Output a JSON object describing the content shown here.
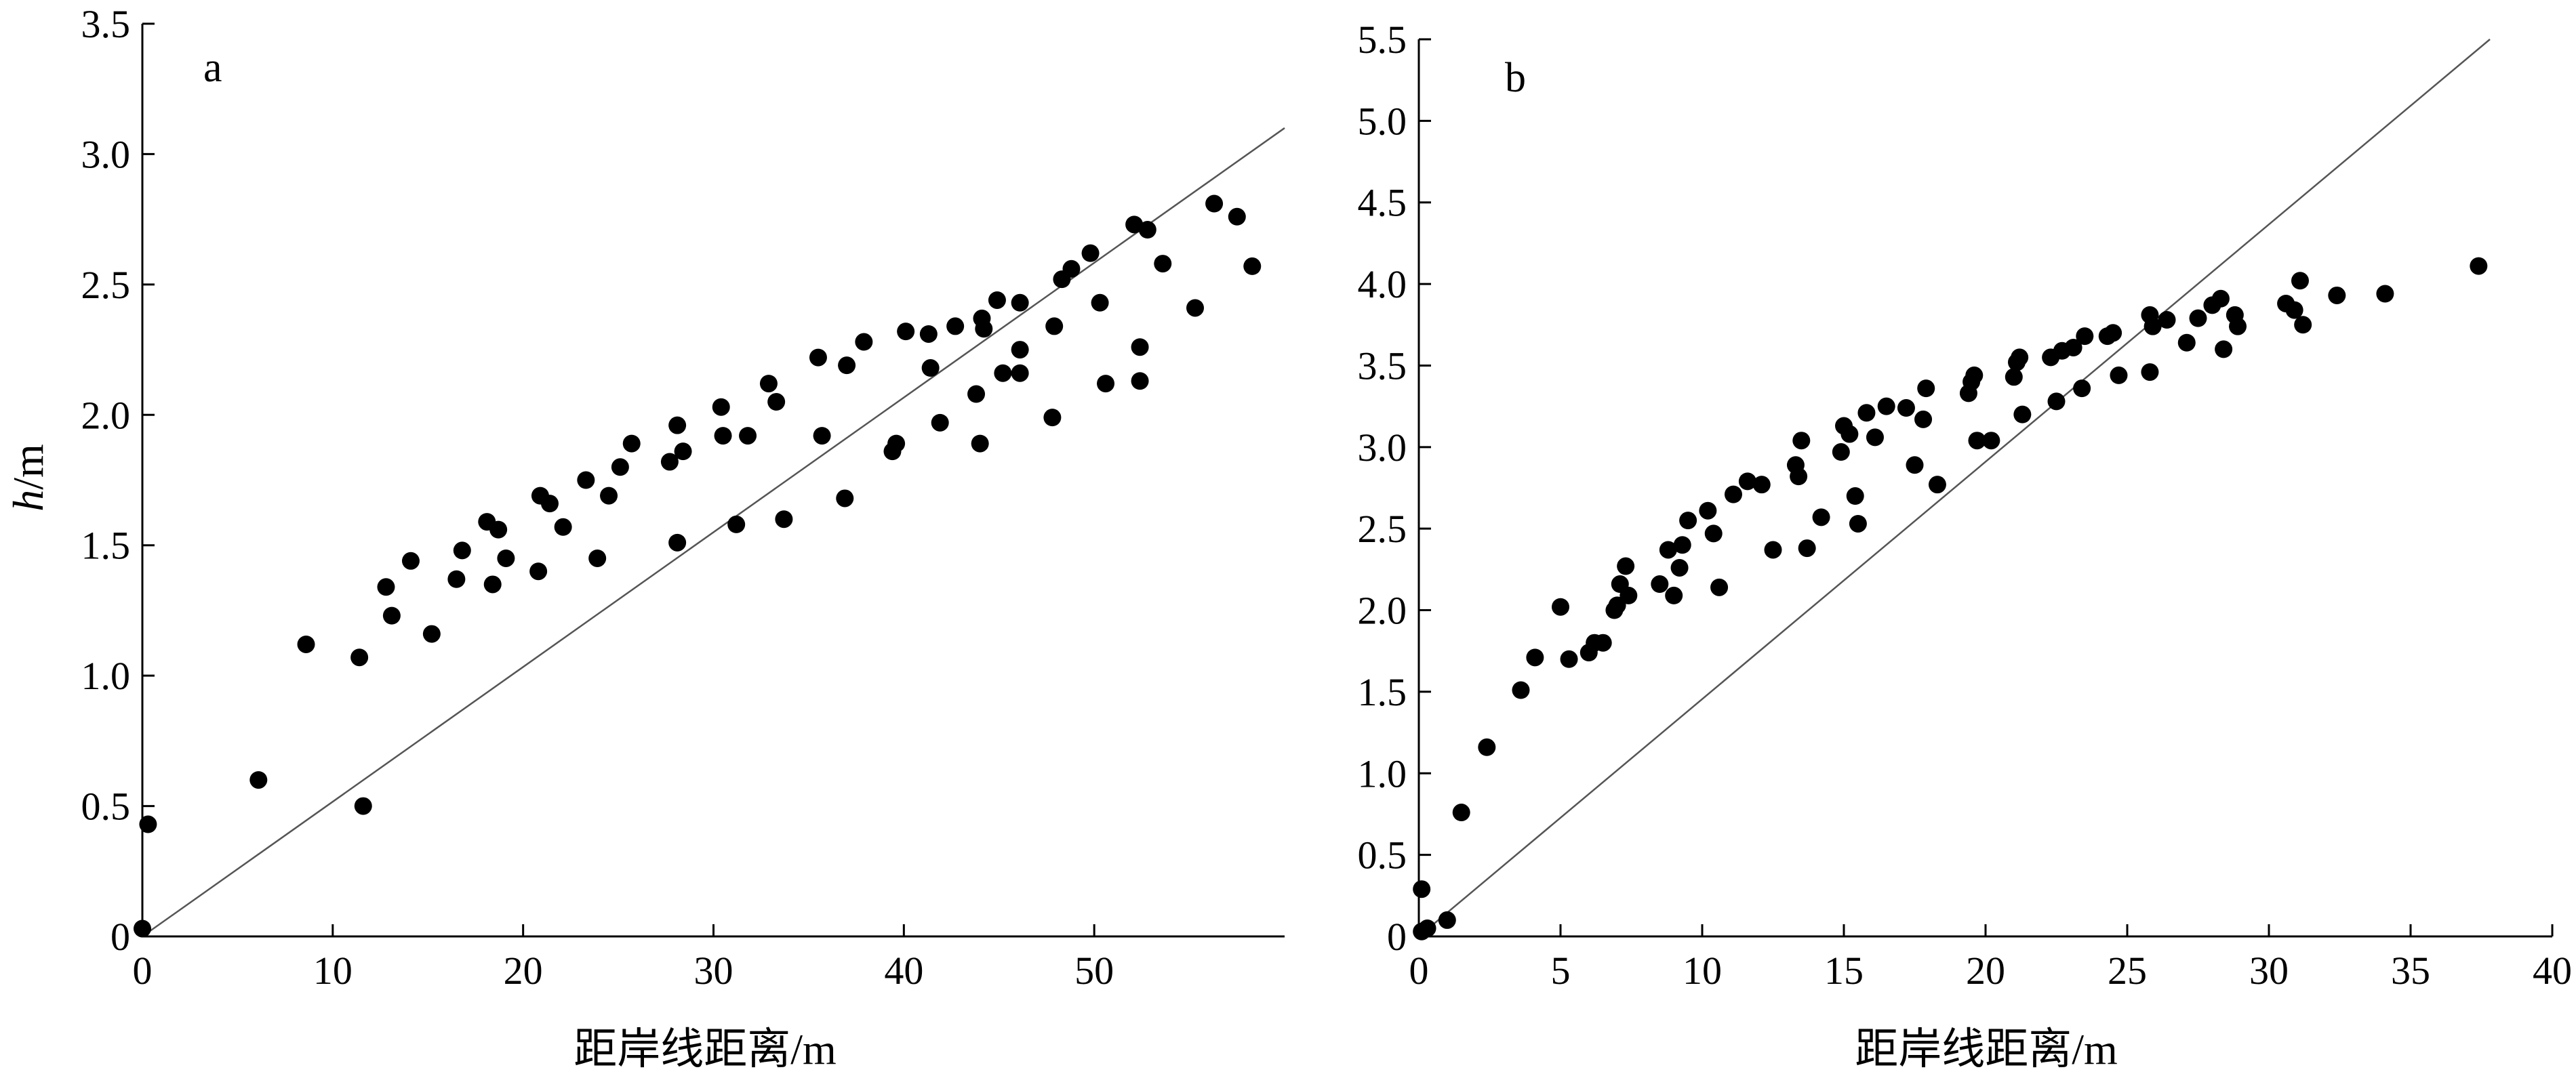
{
  "chart_data": [
    {
      "type": "scatter",
      "panel_label": "a",
      "xlabel": "距岸线距离/m",
      "ylabel_italic": "h",
      "ylabel_unit": "/m",
      "xlim": [
        0,
        60
      ],
      "ylim": [
        0,
        3.5
      ],
      "x_ticks": [
        0,
        10,
        20,
        30,
        40,
        50
      ],
      "x_tick_labels": [
        "0",
        "10",
        "20",
        "30",
        "40",
        "50"
      ],
      "y_ticks": [
        0,
        0.5,
        1.0,
        1.5,
        2.0,
        2.5,
        3.0,
        3.5
      ],
      "y_tick_labels": [
        "0",
        "0.5",
        "1.0",
        "1.5",
        "2.0",
        "2.5",
        "3.0",
        "3.5"
      ],
      "reference_line": [
        [
          0,
          0
        ],
        [
          60,
          3.1
        ]
      ],
      "points": [
        [
          0,
          0.03
        ],
        [
          0.3,
          0.43
        ],
        [
          6.1,
          0.6
        ],
        [
          8.6,
          1.12
        ],
        [
          11.4,
          1.07
        ],
        [
          11.6,
          0.5
        ],
        [
          12.8,
          1.34
        ],
        [
          13.1,
          1.23
        ],
        [
          14.1,
          1.44
        ],
        [
          15.2,
          1.16
        ],
        [
          16.5,
          1.37
        ],
        [
          16.8,
          1.48
        ],
        [
          18.1,
          1.59
        ],
        [
          18.4,
          1.35
        ],
        [
          18.7,
          1.56
        ],
        [
          19.1,
          1.45
        ],
        [
          20.8,
          1.4
        ],
        [
          20.9,
          1.69
        ],
        [
          21.4,
          1.66
        ],
        [
          22.1,
          1.57
        ],
        [
          23.3,
          1.75
        ],
        [
          23.9,
          1.45
        ],
        [
          24.5,
          1.69
        ],
        [
          25.1,
          1.8
        ],
        [
          25.7,
          1.89
        ],
        [
          27.7,
          1.82
        ],
        [
          28.1,
          1.96
        ],
        [
          28.1,
          1.51
        ],
        [
          28.4,
          1.86
        ],
        [
          30.4,
          2.03
        ],
        [
          30.5,
          1.92
        ],
        [
          31.2,
          1.58
        ],
        [
          31.8,
          1.92
        ],
        [
          32.9,
          2.12
        ],
        [
          33.3,
          2.05
        ],
        [
          33.7,
          1.6
        ],
        [
          35.5,
          2.22
        ],
        [
          35.7,
          1.92
        ],
        [
          36.9,
          1.68
        ],
        [
          37.0,
          2.19
        ],
        [
          37.9,
          2.28
        ],
        [
          39.4,
          1.86
        ],
        [
          39.6,
          1.89
        ],
        [
          40.1,
          2.32
        ],
        [
          41.3,
          2.31
        ],
        [
          41.4,
          2.18
        ],
        [
          41.9,
          1.97
        ],
        [
          42.7,
          2.34
        ],
        [
          43.8,
          2.08
        ],
        [
          44.1,
          2.37
        ],
        [
          44.0,
          1.89
        ],
        [
          44.2,
          2.33
        ],
        [
          44.9,
          2.44
        ],
        [
          45.2,
          2.16
        ],
        [
          46.1,
          2.43
        ],
        [
          46.1,
          2.25
        ],
        [
          46.1,
          2.16
        ],
        [
          47.8,
          1.99
        ],
        [
          47.9,
          2.34
        ],
        [
          48.3,
          2.52
        ],
        [
          48.8,
          2.56
        ],
        [
          49.8,
          2.62
        ],
        [
          50.3,
          2.43
        ],
        [
          50.6,
          2.12
        ],
        [
          52.1,
          2.73
        ],
        [
          52.4,
          2.26
        ],
        [
          52.4,
          2.13
        ],
        [
          52.8,
          2.71
        ],
        [
          53.6,
          2.58
        ],
        [
          55.3,
          2.41
        ],
        [
          56.3,
          2.81
        ],
        [
          57.5,
          2.76
        ],
        [
          58.3,
          2.57
        ]
      ]
    },
    {
      "type": "scatter",
      "panel_label": "b",
      "xlabel": "距岸线距离/m",
      "xlim": [
        0,
        40
      ],
      "ylim": [
        0,
        5.5
      ],
      "x_ticks": [
        0,
        5,
        10,
        15,
        20,
        25,
        30,
        35,
        40
      ],
      "x_tick_labels": [
        "0",
        "5",
        "10",
        "15",
        "20",
        "25",
        "30",
        "35",
        "40"
      ],
      "y_ticks": [
        0,
        0.5,
        1.0,
        1.5,
        2.0,
        2.5,
        3.0,
        3.5,
        4.0,
        4.5,
        5.0,
        5.5
      ],
      "y_tick_labels": [
        "0",
        "0.5",
        "1.0",
        "1.5",
        "2.0",
        "2.5",
        "3.0",
        "3.5",
        "4.0",
        "4.5",
        "5.0",
        "5.5"
      ],
      "reference_line": [
        [
          0,
          0
        ],
        [
          37.8,
          5.5
        ]
      ],
      "points": [
        [
          0.1,
          0.03
        ],
        [
          0.1,
          0.29
        ],
        [
          0.3,
          0.05
        ],
        [
          1.0,
          0.1
        ],
        [
          1.5,
          0.76
        ],
        [
          2.4,
          1.16
        ],
        [
          3.6,
          1.51
        ],
        [
          4.1,
          1.71
        ],
        [
          5.0,
          2.02
        ],
        [
          5.3,
          1.7
        ],
        [
          6.0,
          1.74
        ],
        [
          6.2,
          1.8
        ],
        [
          6.5,
          1.8
        ],
        [
          6.9,
          2.0
        ],
        [
          7.0,
          2.03
        ],
        [
          7.1,
          2.16
        ],
        [
          7.3,
          2.27
        ],
        [
          7.4,
          2.09
        ],
        [
          8.5,
          2.16
        ],
        [
          8.8,
          2.37
        ],
        [
          9.0,
          2.09
        ],
        [
          9.2,
          2.26
        ],
        [
          9.3,
          2.4
        ],
        [
          9.5,
          2.55
        ],
        [
          10.2,
          2.61
        ],
        [
          10.4,
          2.47
        ],
        [
          10.6,
          2.14
        ],
        [
          11.1,
          2.71
        ],
        [
          11.6,
          2.79
        ],
        [
          12.1,
          2.77
        ],
        [
          12.5,
          2.37
        ],
        [
          13.3,
          2.89
        ],
        [
          13.4,
          2.82
        ],
        [
          13.5,
          3.04
        ],
        [
          13.7,
          2.38
        ],
        [
          14.2,
          2.57
        ],
        [
          14.9,
          2.97
        ],
        [
          15.0,
          3.13
        ],
        [
          15.2,
          3.08
        ],
        [
          15.4,
          2.7
        ],
        [
          15.5,
          2.53
        ],
        [
          15.8,
          3.21
        ],
        [
          16.1,
          3.06
        ],
        [
          16.5,
          3.25
        ],
        [
          17.2,
          3.24
        ],
        [
          17.5,
          2.89
        ],
        [
          17.8,
          3.17
        ],
        [
          17.9,
          3.36
        ],
        [
          18.3,
          2.77
        ],
        [
          19.4,
          3.33
        ],
        [
          19.5,
          3.4
        ],
        [
          19.6,
          3.44
        ],
        [
          19.7,
          3.04
        ],
        [
          20.2,
          3.04
        ],
        [
          21.0,
          3.43
        ],
        [
          21.1,
          3.52
        ],
        [
          21.2,
          3.55
        ],
        [
          21.3,
          3.2
        ],
        [
          22.3,
          3.55
        ],
        [
          22.5,
          3.28
        ],
        [
          22.7,
          3.59
        ],
        [
          23.1,
          3.61
        ],
        [
          23.4,
          3.36
        ],
        [
          23.5,
          3.68
        ],
        [
          24.3,
          3.68
        ],
        [
          24.5,
          3.7
        ],
        [
          24.7,
          3.44
        ],
        [
          25.8,
          3.81
        ],
        [
          25.8,
          3.46
        ],
        [
          25.9,
          3.74
        ],
        [
          26.4,
          3.78
        ],
        [
          27.1,
          3.64
        ],
        [
          27.5,
          3.79
        ],
        [
          28.0,
          3.87
        ],
        [
          28.3,
          3.91
        ],
        [
          28.4,
          3.6
        ],
        [
          28.8,
          3.81
        ],
        [
          28.9,
          3.74
        ],
        [
          30.6,
          3.88
        ],
        [
          30.9,
          3.84
        ],
        [
          31.1,
          4.02
        ],
        [
          31.2,
          3.75
        ],
        [
          32.4,
          3.93
        ],
        [
          34.1,
          3.94
        ],
        [
          37.4,
          4.11
        ]
      ]
    }
  ]
}
